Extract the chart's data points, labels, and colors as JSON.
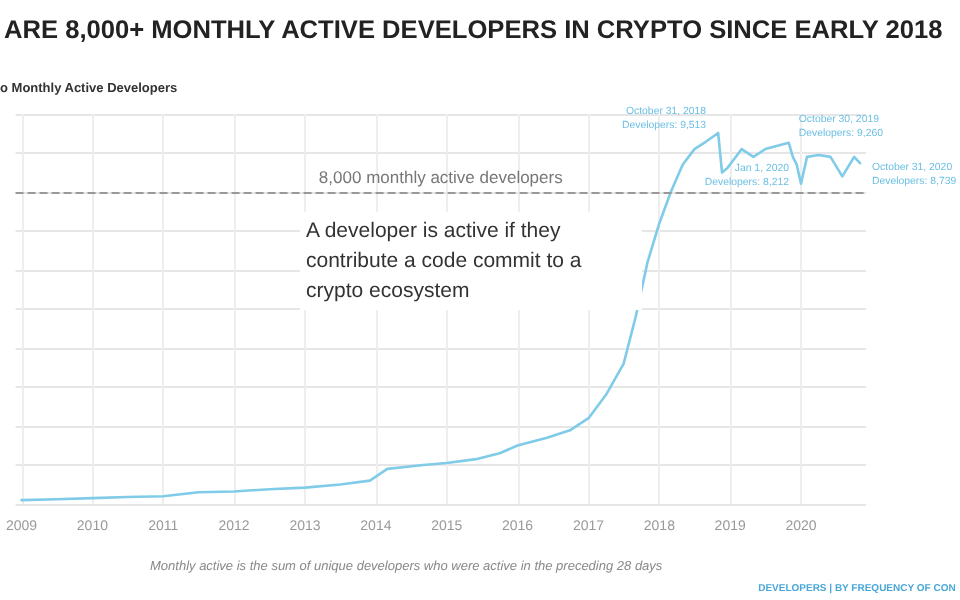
{
  "chart_data": {
    "type": "line",
    "title": "ARE 8,000+ MONTHLY ACTIVE DEVELOPERS IN CRYPTO SINCE EARLY 2018",
    "subtitle": "o Monthly Active Developers",
    "x": [
      "2009-01-01",
      "2009-07-01",
      "2010-01-01",
      "2010-07-01",
      "2011-01-01",
      "2011-07-01",
      "2012-01-01",
      "2012-07-01",
      "2013-01-01",
      "2013-07-01",
      "2013-12-01",
      "2014-03-01",
      "2014-06-01",
      "2014-09-01",
      "2015-01-01",
      "2015-06-01",
      "2015-10-01",
      "2016-01-01",
      "2016-06-01",
      "2016-10-01",
      "2017-01-01",
      "2017-04-01",
      "2017-07-01",
      "2017-09-01",
      "2017-11-01",
      "2018-01-01",
      "2018-03-01",
      "2018-05-01",
      "2018-07-01",
      "2018-09-01",
      "2018-10-31",
      "2018-11-20",
      "2018-12-15",
      "2019-01-15",
      "2019-03-01",
      "2019-05-01",
      "2019-07-01",
      "2019-10-30",
      "2019-11-20",
      "2019-12-10",
      "2020-01-01",
      "2020-02-01",
      "2020-04-01",
      "2020-06-01",
      "2020-08-01",
      "2020-10-01",
      "2020-10-31"
    ],
    "series": [
      {
        "color": "#7fcbe8",
        "values": [
          100,
          120,
          150,
          180,
          200,
          300,
          320,
          380,
          420,
          500,
          600,
          900,
          950,
          1000,
          1050,
          1150,
          1300,
          1500,
          1700,
          1900,
          2200,
          2800,
          3600,
          4800,
          6200,
          7200,
          8000,
          8700,
          9100,
          9300,
          9513,
          8500,
          8600,
          8800,
          9100,
          8900,
          9100,
          9260,
          8900,
          8700,
          8212,
          8900,
          8950,
          8900,
          8400,
          8900,
          8739
        ],
        "value_labels": [
          null,
          null,
          null,
          null,
          null,
          null,
          null,
          null,
          null,
          null,
          null,
          null,
          null,
          null,
          null,
          null,
          null,
          null,
          null,
          null,
          null,
          null,
          null,
          null,
          null,
          null,
          null,
          null,
          null,
          null,
          "October 31, 2018\nDevelopers: 9,513",
          null,
          null,
          null,
          null,
          null,
          null,
          "October 30, 2019\nDevelopers: 9,260",
          null,
          null,
          "Jan 1, 2020\nDevelopers: 8,212",
          null,
          null,
          null,
          null,
          null,
          "October 31, 2020\nDevelopers: 8,739"
        ]
      }
    ],
    "xlim": [
      "2008-12-01",
      "2020-12-01"
    ],
    "xticks": [
      "2009",
      "2010",
      "2011",
      "2012",
      "2013",
      "2014",
      "2015",
      "2016",
      "2017",
      "2018",
      "2019",
      "2020"
    ],
    "ylim": [
      0,
      10000
    ],
    "yticks": [
      {
        "value": 0,
        "label": null
      },
      {
        "value": 1000,
        "label": null
      },
      {
        "value": 2000,
        "label": null
      },
      {
        "value": 3000,
        "label": null
      },
      {
        "value": 4000,
        "label": null
      },
      {
        "value": 5000,
        "label": null
      },
      {
        "value": 6000,
        "label": null
      },
      {
        "value": 7000,
        "label": null
      },
      {
        "value": 8000,
        "label": null
      },
      {
        "value": 9000,
        "label": null
      },
      {
        "value": 10000,
        "label": null
      }
    ],
    "tick_labels": "x",
    "grid": true,
    "marker": "none",
    "line_style": "solid",
    "ref_lines": [
      {
        "axis": "y",
        "value": 8000,
        "label": "8,000 monthly active developers",
        "color": "#999999",
        "line_style": "dashed"
      }
    ],
    "annotations": [
      "A developer is active if they contribute a code commit to a crypto ecosystem",
      "Monthly active is the sum of unique developers who were active in the preceding 28 days",
      "DEVELOPERS | BY FREQUENCY OF CON"
    ]
  }
}
